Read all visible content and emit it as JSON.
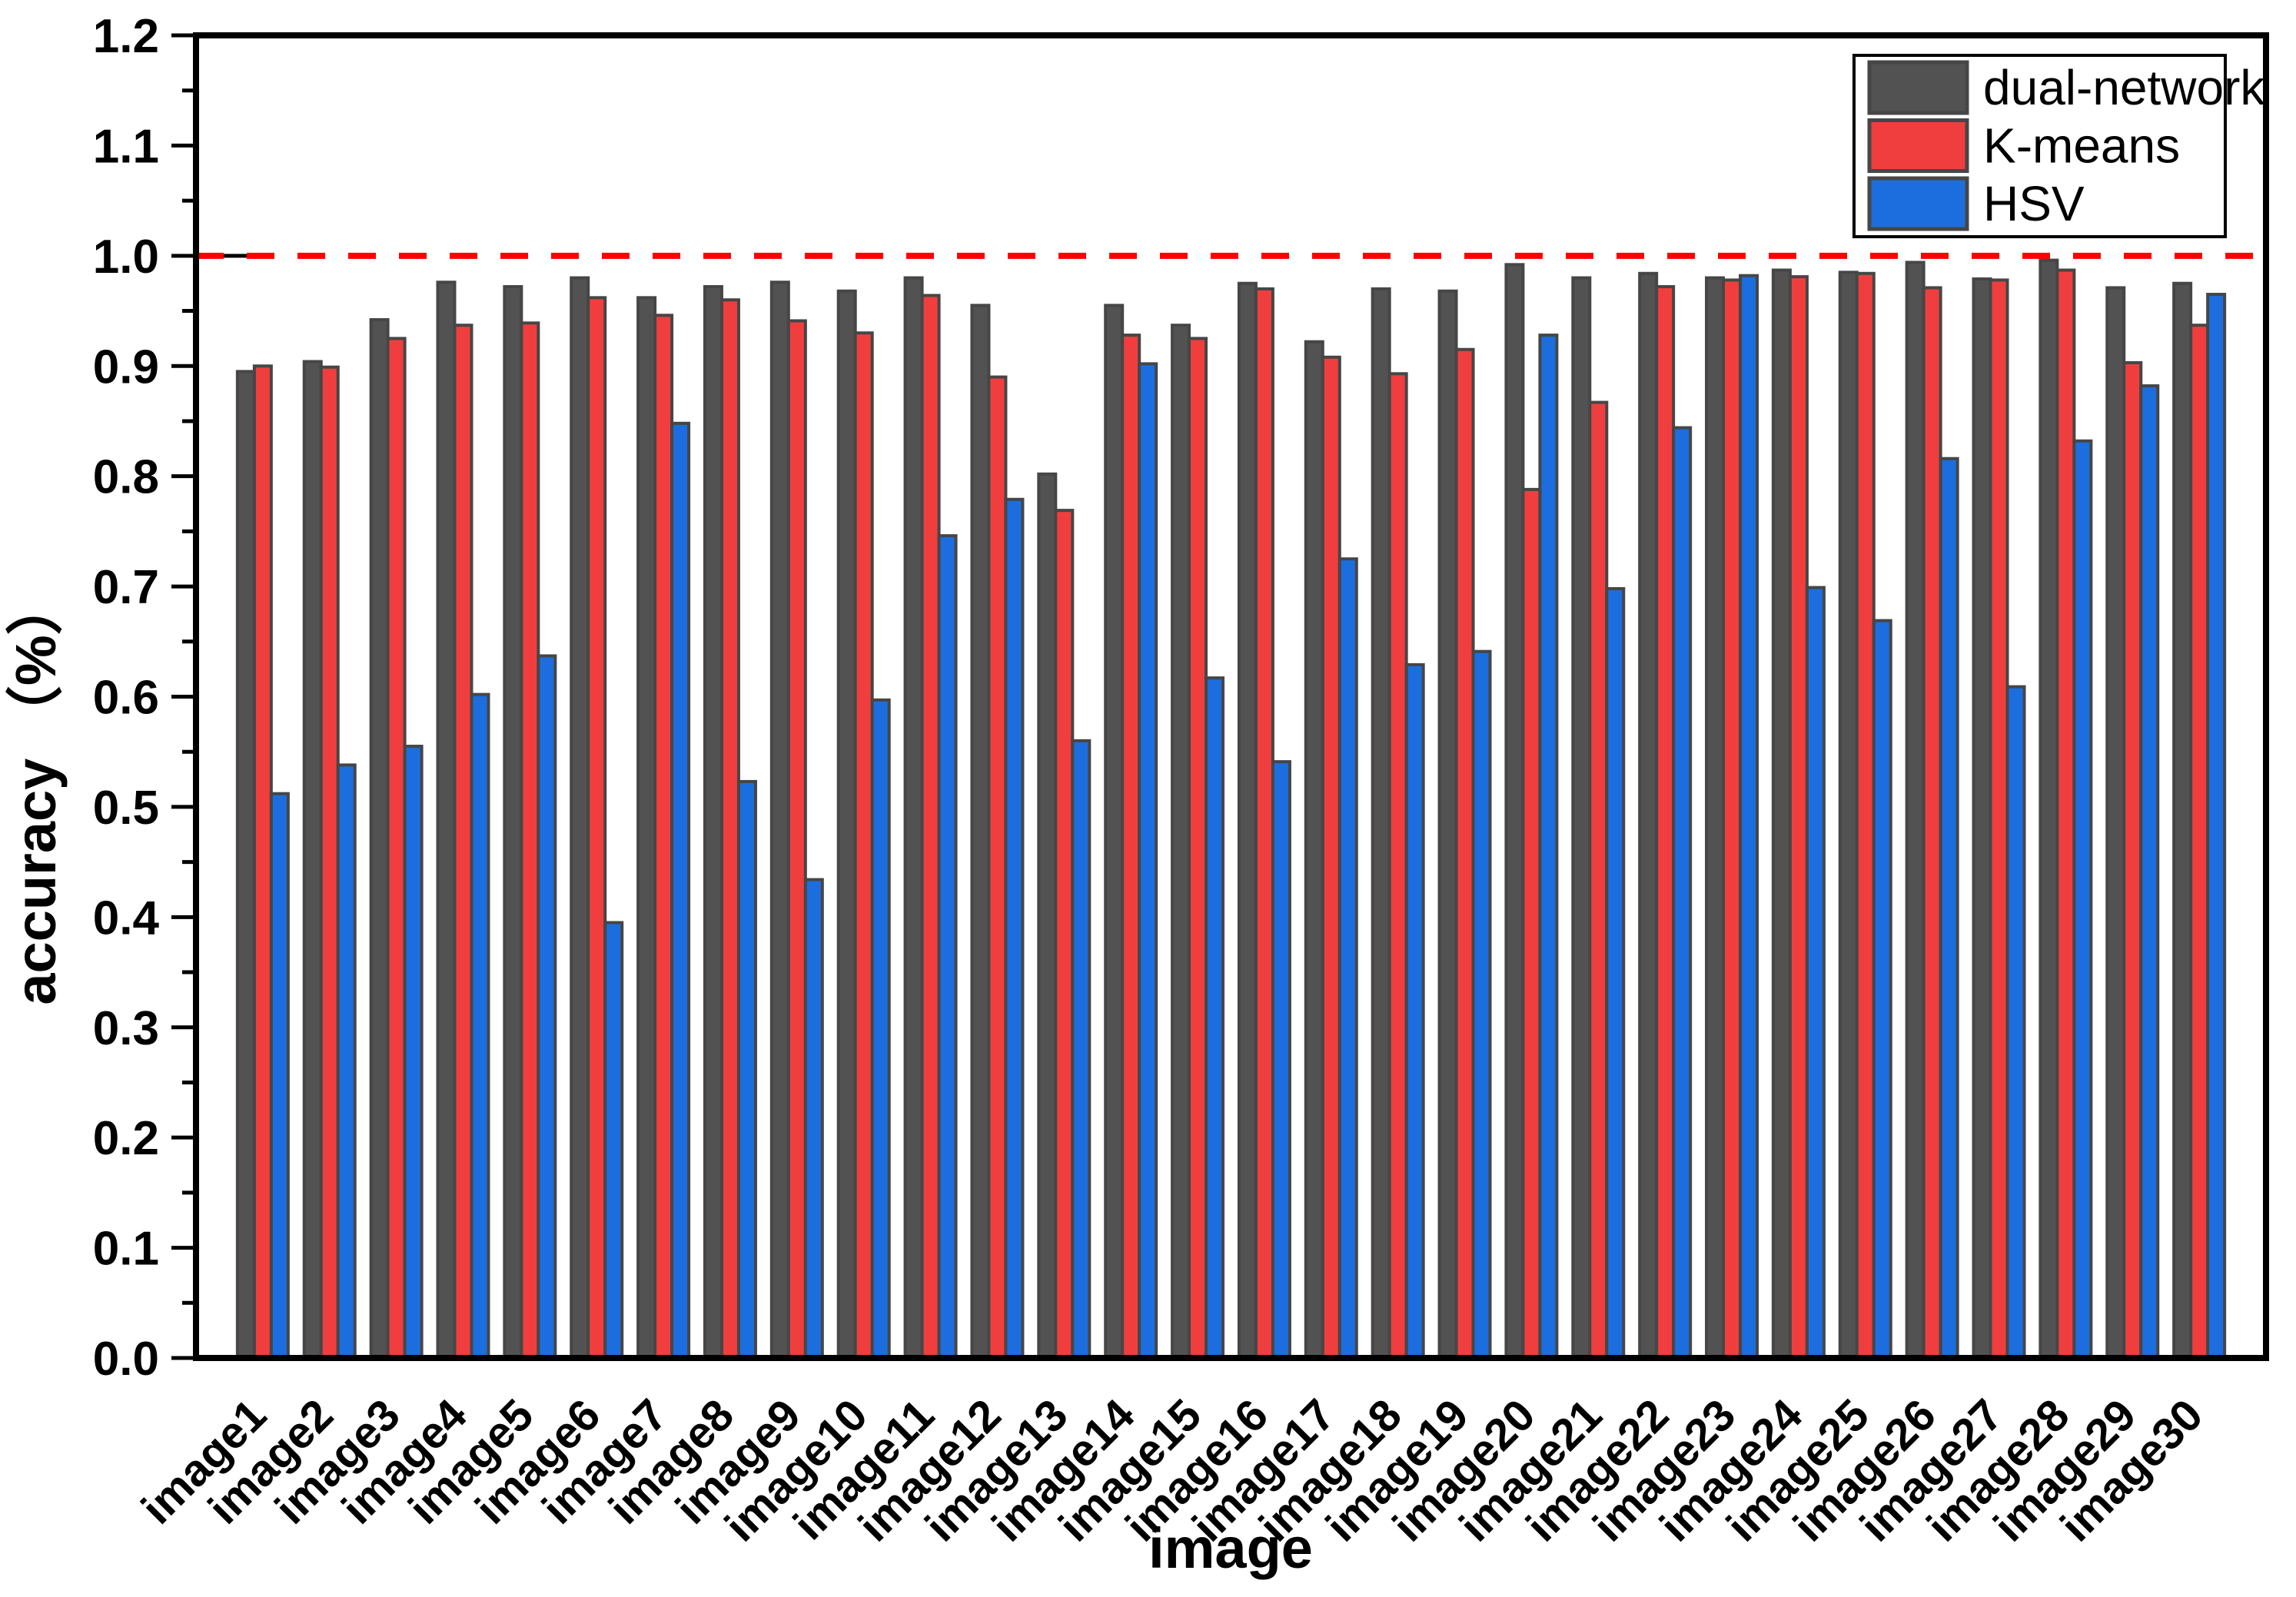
{
  "chart_data": {
    "type": "bar",
    "title": "",
    "xlabel": "image",
    "ylabel": "accuracy （%）",
    "categories": [
      "image1",
      "image2",
      "image3",
      "image4",
      "image5",
      "image6",
      "image7",
      "image8",
      "image9",
      "image10",
      "image11",
      "image12",
      "image13",
      "image14",
      "image15",
      "image16",
      "image17",
      "image18",
      "image19",
      "image20",
      "image21",
      "image22",
      "image23",
      "image24",
      "image25",
      "image26",
      "image27",
      "image28",
      "image29",
      "image30"
    ],
    "series": [
      {
        "name": "dual-network",
        "color": "#525252",
        "values": [
          0.895,
          0.904,
          0.942,
          0.976,
          0.972,
          0.98,
          0.962,
          0.972,
          0.976,
          0.968,
          0.98,
          0.955,
          0.802,
          0.955,
          0.937,
          0.975,
          0.922,
          0.97,
          0.968,
          0.992,
          0.98,
          0.984,
          0.98,
          0.987,
          0.985,
          0.994,
          0.979,
          0.996,
          0.971,
          0.975
        ]
      },
      {
        "name": "K-means",
        "color": "#f03e3e",
        "values": [
          0.9,
          0.899,
          0.925,
          0.937,
          0.939,
          0.962,
          0.946,
          0.96,
          0.941,
          0.93,
          0.964,
          0.89,
          0.769,
          0.928,
          0.925,
          0.97,
          0.908,
          0.893,
          0.915,
          0.788,
          0.867,
          0.972,
          0.978,
          0.981,
          0.984,
          0.971,
          0.978,
          0.987,
          0.903,
          0.937
        ]
      },
      {
        "name": "HSV",
        "color": "#1c6edf",
        "values": [
          0.512,
          0.538,
          0.555,
          0.602,
          0.637,
          0.395,
          0.848,
          0.523,
          0.434,
          0.597,
          0.746,
          0.779,
          0.56,
          0.902,
          0.617,
          0.541,
          0.725,
          0.629,
          0.641,
          0.928,
          0.698,
          0.844,
          0.982,
          0.699,
          0.669,
          0.816,
          0.609,
          0.832,
          0.882,
          0.965
        ]
      }
    ],
    "ylim": [
      0.0,
      1.2
    ],
    "ytick_step": 0.1,
    "yminor_step": 0.05,
    "ytick_labels": [
      "0.0",
      "0.1",
      "0.2",
      "0.3",
      "0.4",
      "0.5",
      "0.6",
      "0.7",
      "0.8",
      "0.9",
      "1.0",
      "1.1",
      "1.2"
    ],
    "reference_line": {
      "value": 1.0,
      "color": "#ff0000",
      "style": "dashed"
    },
    "bar_outline_color": "#464646",
    "frame_color": "#000000",
    "legend_position": "top-right",
    "grid": false
  }
}
